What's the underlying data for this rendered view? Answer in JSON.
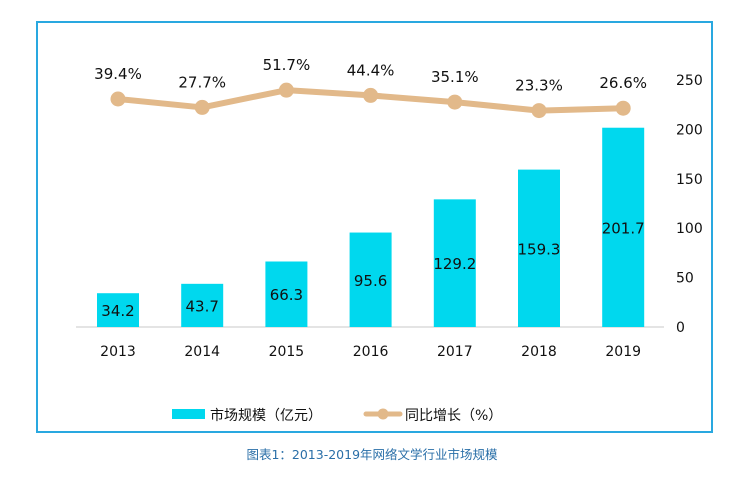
{
  "caption": "图表1：2013-2019年网络文学行业市场规模",
  "colors": {
    "bar": "#00d8ee",
    "line": "#e2b98a",
    "border": "#29a8e0",
    "caption": "#2a6fa8"
  },
  "chart_data": {
    "type": "bar+line",
    "categories": [
      "2013",
      "2014",
      "2015",
      "2016",
      "2017",
      "2018",
      "2019"
    ],
    "series": [
      {
        "name": "市场规模（亿元）",
        "type": "bar",
        "axis": "right",
        "values": [
          34.2,
          43.7,
          66.3,
          95.6,
          129.2,
          159.3,
          201.7
        ],
        "labels": [
          "34.2",
          "43.7",
          "66.3",
          "95.6",
          "129.2",
          "159.3",
          "201.7"
        ]
      },
      {
        "name": "同比增长（%）",
        "type": "line",
        "values": [
          39.4,
          27.7,
          51.7,
          44.4,
          35.1,
          23.3,
          26.6
        ],
        "labels": [
          "39.4%",
          "27.7%",
          "51.7%",
          "44.4%",
          "35.1%",
          "23.3%",
          "26.6%"
        ]
      }
    ],
    "y_right": {
      "range": [
        0,
        250
      ],
      "ticks": [
        "0",
        "50",
        "100",
        "150",
        "200",
        "250"
      ]
    },
    "grid": false,
    "legend": "bottom"
  }
}
